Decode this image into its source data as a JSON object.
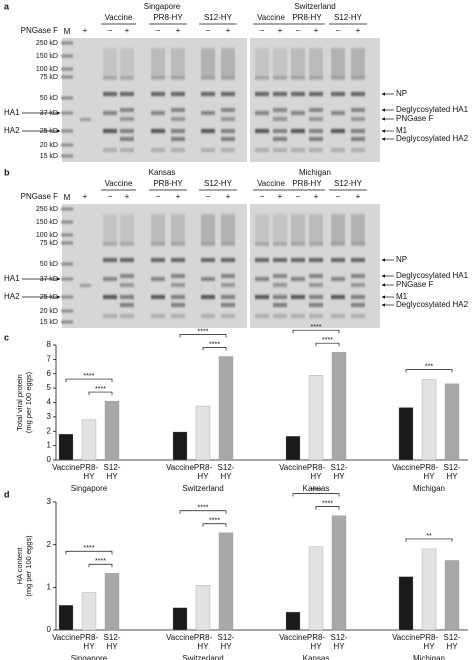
{
  "gels": [
    {
      "panel": "a",
      "treatment": "PNGase F",
      "lane_labels": [
        "M",
        "+"
      ],
      "halves": [
        {
          "title": "Singapore",
          "groups": [
            "Vaccine",
            "PR8-HY",
            "S12-HY"
          ]
        },
        {
          "title": "Switzerland",
          "groups": [
            "Vaccine",
            "PR8-HY",
            "S12-HY"
          ]
        }
      ],
      "lane_signs": [
        "−",
        "+"
      ],
      "markers": [
        "250 kD",
        "150 kD",
        "100 kD",
        "75 kD",
        "50 kD",
        "37 kD",
        "25 kD",
        "20 kD",
        "15 kD"
      ],
      "left_labels": [
        "HA1",
        "HA2"
      ],
      "right_labels": [
        "NP",
        "Deglycosylated HA1",
        "PNGase F",
        "M1",
        "Deglycosylated HA2"
      ]
    },
    {
      "panel": "b",
      "treatment": "PNGase F",
      "lane_labels": [
        "M",
        "+"
      ],
      "halves": [
        {
          "title": "Kansas",
          "groups": [
            "Vaccine",
            "PR8-HY",
            "S12-HY"
          ]
        },
        {
          "title": "Michigan",
          "groups": [
            "Vaccine",
            "PR8-HY",
            "S12-HY"
          ]
        }
      ],
      "lane_signs": [
        "−",
        "+"
      ],
      "markers": [
        "250 kD",
        "150 kD",
        "100 kD",
        "75 kD",
        "50 kD",
        "37 kD",
        "25 kD",
        "20 kD",
        "15 kD"
      ],
      "left_labels": [
        "HA1",
        "HA2"
      ],
      "right_labels": [
        "NP",
        "Deglycosylated HA1",
        "PNGase F",
        "M1",
        "Deglycosylated HA2"
      ]
    }
  ],
  "chart_data": [
    {
      "type": "bar",
      "panel": "c",
      "ylabel": [
        "Total viral protein",
        "(mg per 100 eggs)"
      ],
      "ylim": [
        0,
        8
      ],
      "yticks": [
        0,
        1,
        2,
        3,
        4,
        5,
        6,
        7,
        8
      ],
      "colors": [
        "#1a1a1a",
        "#e2e2e2",
        "#a8a8a8"
      ],
      "groups": [
        {
          "name": "Singapore",
          "categories": [
            "Vaccine",
            "PR8-HY",
            "S12-HY"
          ],
          "values": [
            1.8,
            2.8,
            4.1
          ],
          "significance": [
            "****",
            "****"
          ]
        },
        {
          "name": "Switzerland",
          "categories": [
            "Vaccine",
            "PR8-HY",
            "S12-HY"
          ],
          "values": [
            1.95,
            3.75,
            7.2
          ],
          "significance": [
            "****",
            "****"
          ]
        },
        {
          "name": "Kansas",
          "categories": [
            "Vaccine",
            "PR8-HY",
            "S12-HY"
          ],
          "values": [
            1.65,
            5.9,
            7.5
          ],
          "significance": [
            "****",
            "****"
          ]
        },
        {
          "name": "Michigan",
          "categories": [
            "Vaccine",
            "PR8-HY",
            "S12-HY"
          ],
          "values": [
            3.65,
            5.6,
            5.3
          ],
          "significance": [
            "***"
          ]
        }
      ]
    },
    {
      "type": "bar",
      "panel": "d",
      "ylabel": [
        "HA content",
        "(mg per 100 eggs)"
      ],
      "ylim": [
        0,
        3
      ],
      "yticks": [
        0,
        1,
        2,
        3
      ],
      "colors": [
        "#1a1a1a",
        "#e2e2e2",
        "#a8a8a8"
      ],
      "groups": [
        {
          "name": "Singapore",
          "categories": [
            "Vaccine",
            "PR8-HY",
            "S12-HY"
          ],
          "values": [
            0.58,
            0.88,
            1.33
          ],
          "significance": [
            "****",
            "****"
          ]
        },
        {
          "name": "Switzerland",
          "categories": [
            "Vaccine",
            "PR8-HY",
            "S12-HY"
          ],
          "values": [
            0.52,
            1.05,
            2.28
          ],
          "significance": [
            "****",
            "****"
          ]
        },
        {
          "name": "Kansas",
          "categories": [
            "Vaccine",
            "PR8-HY",
            "S12-HY"
          ],
          "values": [
            0.42,
            1.95,
            2.68
          ],
          "significance": [
            "****",
            "****"
          ]
        },
        {
          "name": "Michigan",
          "categories": [
            "Vaccine",
            "PR8-HY",
            "S12-HY"
          ],
          "values": [
            1.25,
            1.9,
            1.63
          ],
          "significance": [
            "**"
          ]
        }
      ]
    }
  ]
}
